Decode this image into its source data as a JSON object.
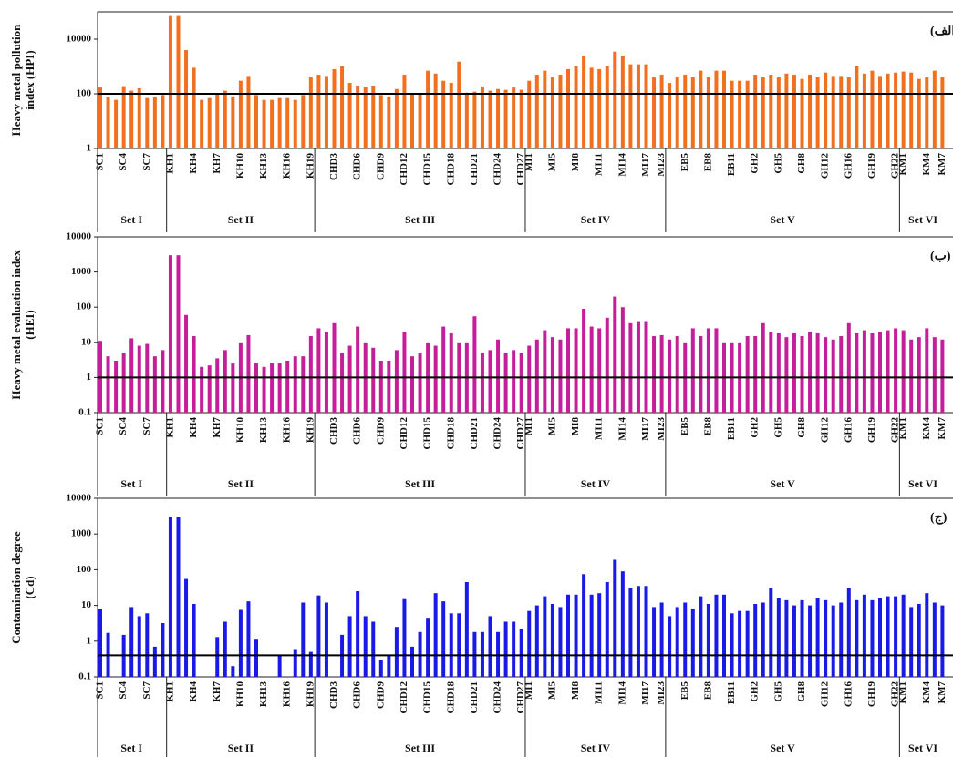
{
  "chart_data": [
    {
      "type": "bar",
      "ylabel": [
        "Heavy metal pollution",
        "index (HPI)"
      ],
      "annotation": "(الف)",
      "color": "#f07020",
      "log_scale": true,
      "ylim": [
        1,
        100000
      ],
      "yticks": [
        1,
        100,
        10000
      ],
      "threshold": 100,
      "categories": [
        "SC1",
        null,
        null,
        "SC4",
        null,
        null,
        "SC7",
        null,
        null,
        "KH1",
        null,
        null,
        "KH4",
        null,
        null,
        "KH7",
        null,
        null,
        "KH10",
        null,
        null,
        "KH13",
        null,
        null,
        "KH16",
        null,
        null,
        "KH19",
        null,
        null,
        "CHD3",
        null,
        null,
        "CHD6",
        null,
        null,
        "CHD9",
        null,
        null,
        "CHD12",
        null,
        null,
        "CHD15",
        null,
        null,
        "CHD18",
        null,
        null,
        "CHD21",
        null,
        null,
        "CHD24",
        null,
        null,
        "CHD27",
        "MI1",
        null,
        null,
        "MI5",
        null,
        null,
        "MI8",
        null,
        null,
        "MI11",
        null,
        null,
        "MI14",
        null,
        null,
        "MI17",
        null,
        "MI23",
        null,
        null,
        "EB5",
        null,
        null,
        "EB8",
        null,
        null,
        "EB11",
        null,
        null,
        "GH2",
        null,
        null,
        "GH5",
        null,
        null,
        "GH8",
        null,
        null,
        "GH12",
        null,
        null,
        "GH16",
        null,
        null,
        "GH19",
        null,
        null,
        "GH22",
        "KM1",
        null,
        null,
        "KM4",
        null,
        "KM7"
      ],
      "groups": [
        {
          "name": "Set I",
          "size": 9
        },
        {
          "name": "Set II",
          "size": 19
        },
        {
          "name": "Set III",
          "size": 27
        },
        {
          "name": "Set IV",
          "size": 18
        },
        {
          "name": "Set V",
          "size": 30
        },
        {
          "name": "Set VI",
          "size": 6
        }
      ],
      "values": [
        170,
        75,
        60,
        190,
        130,
        160,
        70,
        80,
        90,
        70000,
        70000,
        4000,
        900,
        60,
        70,
        100,
        130,
        80,
        300,
        450,
        90,
        60,
        60,
        70,
        70,
        60,
        90,
        400,
        500,
        450,
        800,
        1000,
        250,
        200,
        180,
        200,
        90,
        80,
        150,
        500,
        100,
        100,
        700,
        550,
        300,
        250,
        1500,
        110,
        120,
        180,
        130,
        150,
        140,
        170,
        140,
        300,
        500,
        700,
        400,
        500,
        800,
        1000,
        2500,
        900,
        800,
        1000,
        3500,
        2500,
        1200,
        1200,
        1200,
        400,
        500,
        250,
        400,
        500,
        400,
        700,
        400,
        700,
        700,
        300,
        300,
        300,
        500,
        400,
        500,
        400,
        550,
        500,
        350,
        500,
        400,
        600,
        450,
        450,
        400,
        1000,
        550,
        700,
        450,
        550,
        600,
        650,
        600,
        350,
        400,
        700,
        400
      ]
    },
    {
      "type": "bar",
      "ylabel": [
        "Heavy metal evaluation index",
        "(HEI)"
      ],
      "annotation": "(ب)",
      "color": "#c41f9a",
      "log_scale": true,
      "ylim": [
        0.1,
        10000
      ],
      "yticks": [
        0.1,
        1,
        10,
        100,
        1000,
        10000
      ],
      "threshold": 1,
      "categories": [
        "SC1",
        null,
        null,
        "SC4",
        null,
        null,
        "SC7",
        null,
        null,
        "KH1",
        null,
        null,
        "KH4",
        null,
        null,
        "KH7",
        null,
        null,
        "KH10",
        null,
        null,
        "KH13",
        null,
        null,
        "KH16",
        null,
        null,
        "KH19",
        null,
        null,
        "CHD3",
        null,
        null,
        "CHD6",
        null,
        null,
        "CHD9",
        null,
        null,
        "CHD12",
        null,
        null,
        "CHD15",
        null,
        null,
        "CHD18",
        null,
        null,
        "CHD21",
        null,
        null,
        "CHD24",
        null,
        null,
        "CHD27",
        "MI1",
        null,
        null,
        "MI5",
        null,
        null,
        "MI8",
        null,
        null,
        "MI11",
        null,
        null,
        "MI14",
        null,
        null,
        "MI17",
        null,
        "MI23",
        null,
        null,
        "EB5",
        null,
        null,
        "EB8",
        null,
        null,
        "EB11",
        null,
        null,
        "GH2",
        null,
        null,
        "GH5",
        null,
        null,
        "GH8",
        null,
        null,
        "GH12",
        null,
        null,
        "GH16",
        null,
        null,
        "GH19",
        null,
        null,
        "GH22",
        "KM1",
        null,
        null,
        "KM4",
        null,
        "KM7"
      ],
      "groups": [
        {
          "name": "Set I",
          "size": 9
        },
        {
          "name": "Set II",
          "size": 19
        },
        {
          "name": "Set III",
          "size": 27
        },
        {
          "name": "Set IV",
          "size": 18
        },
        {
          "name": "Set V",
          "size": 30
        },
        {
          "name": "Set VI",
          "size": 6
        }
      ],
      "values": [
        11,
        4,
        3,
        5,
        13,
        8,
        9,
        4,
        6,
        3000,
        3000,
        60,
        15,
        2,
        2.2,
        3.5,
        6,
        2.5,
        10,
        16,
        2.5,
        2,
        2.5,
        2.5,
        3,
        4,
        4,
        15,
        25,
        20,
        35,
        5,
        8,
        28,
        10,
        7,
        3,
        3,
        6,
        20,
        4,
        5,
        10,
        8,
        28,
        18,
        10,
        10,
        55,
        5,
        6,
        12,
        5,
        6,
        5,
        8,
        12,
        22,
        14,
        12,
        25,
        25,
        90,
        28,
        25,
        50,
        200,
        100,
        35,
        40,
        40,
        15,
        16,
        12,
        15,
        10,
        25,
        15,
        25,
        25,
        10,
        10,
        10,
        15,
        15,
        35,
        20,
        18,
        14,
        18,
        15,
        20,
        18,
        14,
        12,
        15,
        35,
        18,
        22,
        18,
        20,
        22,
        25,
        22,
        12,
        14,
        25,
        14,
        12
      ]
    },
    {
      "type": "bar",
      "ylabel": [
        "Contamination degree",
        "(Cd)"
      ],
      "annotation": "(ج)",
      "color": "#1a1ae6",
      "log_scale": true,
      "ylim": [
        0.1,
        10000
      ],
      "yticks": [
        0.1,
        1,
        10,
        100,
        1000,
        10000
      ],
      "threshold": 0.4,
      "categories": [
        "SC1",
        null,
        null,
        "SC4",
        null,
        null,
        "SC7",
        null,
        null,
        "KH1",
        null,
        null,
        "KH4",
        null,
        null,
        "KH7",
        null,
        null,
        "KH10",
        null,
        null,
        "KH13",
        null,
        null,
        "KH16",
        null,
        null,
        "KH19",
        null,
        null,
        "CHD3",
        null,
        null,
        "CHD6",
        null,
        null,
        "CHD9",
        null,
        null,
        "CHD12",
        null,
        null,
        "CHD15",
        null,
        null,
        "CHD18",
        null,
        null,
        "CHD21",
        null,
        null,
        "CHD24",
        null,
        null,
        "CHD27",
        "MI1",
        null,
        null,
        "MI5",
        null,
        null,
        "MI8",
        null,
        null,
        "MI11",
        null,
        null,
        "MI14",
        null,
        null,
        "MI17",
        null,
        "MI23",
        null,
        null,
        "EB5",
        null,
        null,
        "EB8",
        null,
        null,
        "EB11",
        null,
        null,
        "GH2",
        null,
        null,
        "GH5",
        null,
        null,
        "GH8",
        null,
        null,
        "GH12",
        null,
        null,
        "GH16",
        null,
        null,
        "GH19",
        null,
        null,
        "GH22",
        "KM1",
        null,
        null,
        "KM4",
        null,
        "KM7"
      ],
      "groups": [
        {
          "name": "Set I",
          "size": 9
        },
        {
          "name": "Set II",
          "size": 19
        },
        {
          "name": "Set III",
          "size": 27
        },
        {
          "name": "Set IV",
          "size": 18
        },
        {
          "name": "Set V",
          "size": 30
        },
        {
          "name": "Set VI",
          "size": 6
        }
      ],
      "values": [
        8,
        1.7,
        null,
        1.5,
        9,
        5,
        6,
        0.7,
        3.2,
        3000,
        3000,
        55,
        11,
        null,
        null,
        1.3,
        3.5,
        0.2,
        7.5,
        13,
        1.1,
        null,
        null,
        0.4,
        null,
        0.6,
        12,
        0.5,
        19,
        12,
        null,
        1.5,
        5,
        25,
        5,
        3.5,
        0.3,
        0.4,
        2.5,
        15,
        0.7,
        1.8,
        4.5,
        22,
        13,
        6,
        6,
        45,
        1.8,
        1.8,
        5,
        1.8,
        3.5,
        3.5,
        2.2,
        7,
        10,
        18,
        11,
        9,
        20,
        20,
        75,
        20,
        22,
        45,
        190,
        90,
        30,
        35,
        35,
        9,
        12,
        5,
        9,
        12,
        8,
        18,
        11,
        20,
        20,
        6,
        7,
        7,
        11,
        12,
        30,
        16,
        14,
        10,
        14,
        10,
        16,
        14,
        10,
        12,
        30,
        14,
        20,
        14,
        16,
        18,
        18,
        20,
        9,
        11,
        22,
        12,
        10
      ]
    }
  ]
}
